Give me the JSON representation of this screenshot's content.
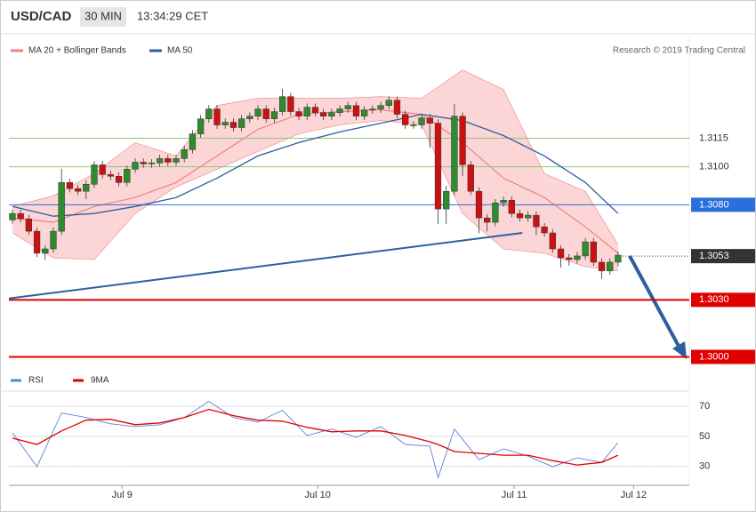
{
  "chart_data": {
    "type": "candlestick",
    "title": "USD/CAD",
    "timeframe": "30 MIN",
    "time": "13:34:29 CET",
    "credit": "Research © 2019 Trading Central",
    "xlim": [
      -0.43,
      82.7
    ],
    "ylim": [
      1.2982,
      1.3169
    ],
    "xticks": [
      {
        "value": 13.4,
        "label": "Jul 9"
      },
      {
        "value": 37.3,
        "label": "Jul 10"
      },
      {
        "value": 61.3,
        "label": "Jul 11"
      },
      {
        "value": 75.9,
        "label": "Jul 12"
      }
    ],
    "candles": {
      "up_color": "#2e8b2e",
      "down_color": "#cc1111",
      "ohlc": [
        [
          1.3072,
          1.30774,
          1.307,
          1.30754
        ],
        [
          1.30754,
          1.30774,
          1.30706,
          1.30726
        ],
        [
          1.30726,
          1.30746,
          1.30641,
          1.30661
        ],
        [
          1.30661,
          1.30681,
          1.30525,
          1.30545
        ],
        [
          1.30545,
          1.30588,
          1.3051,
          1.30568
        ],
        [
          1.30568,
          1.30681,
          1.30548,
          1.30661
        ],
        [
          1.30661,
          1.3099,
          1.30641,
          1.30917
        ],
        [
          1.30917,
          1.30937,
          1.30865,
          1.30885
        ],
        [
          1.30885,
          1.30905,
          1.30851,
          1.30871
        ],
        [
          1.30871,
          1.30928,
          1.3083,
          1.30908
        ],
        [
          1.30908,
          1.3103,
          1.30888,
          1.3101
        ],
        [
          1.3101,
          1.3103,
          1.30939,
          1.30959
        ],
        [
          1.30959,
          1.30979,
          1.3093,
          1.3095
        ],
        [
          1.3095,
          1.3097,
          1.30897,
          1.30917
        ],
        [
          1.30917,
          1.31007,
          1.30897,
          1.30987
        ],
        [
          1.30987,
          1.31044,
          1.30967,
          1.31024
        ],
        [
          1.31024,
          1.31044,
          1.30995,
          1.31015
        ],
        [
          1.31015,
          1.3104,
          1.30995,
          1.3102
        ],
        [
          1.3102,
          1.31063,
          1.31,
          1.31043
        ],
        [
          1.31043,
          1.31063,
          1.31004,
          1.31024
        ],
        [
          1.31024,
          1.31063,
          1.31004,
          1.31043
        ],
        [
          1.31043,
          1.3111,
          1.31023,
          1.3109
        ],
        [
          1.3109,
          1.31193,
          1.3107,
          1.31173
        ],
        [
          1.31173,
          1.31272,
          1.31153,
          1.31252
        ],
        [
          1.31252,
          1.31324,
          1.31232,
          1.31304
        ],
        [
          1.31304,
          1.31324,
          1.312,
          1.3122
        ],
        [
          1.3122,
          1.31254,
          1.312,
          1.31234
        ],
        [
          1.31234,
          1.31254,
          1.31186,
          1.31206
        ],
        [
          1.31206,
          1.31272,
          1.31186,
          1.31252
        ],
        [
          1.31252,
          1.31286,
          1.31232,
          1.31266
        ],
        [
          1.31266,
          1.31324,
          1.31246,
          1.31304
        ],
        [
          1.31304,
          1.31324,
          1.31232,
          1.31252
        ],
        [
          1.31252,
          1.3131,
          1.31232,
          1.3129
        ],
        [
          1.3129,
          1.3141,
          1.3127,
          1.31369
        ],
        [
          1.31369,
          1.31389,
          1.3127,
          1.3129
        ],
        [
          1.3129,
          1.3131,
          1.31246,
          1.31266
        ],
        [
          1.31266,
          1.31333,
          1.31246,
          1.31313
        ],
        [
          1.31313,
          1.31333,
          1.31265,
          1.31285
        ],
        [
          1.31285,
          1.31305,
          1.31246,
          1.31266
        ],
        [
          1.31266,
          1.31305,
          1.31246,
          1.31285
        ],
        [
          1.31285,
          1.31324,
          1.31265,
          1.31304
        ],
        [
          1.31304,
          1.31342,
          1.31284,
          1.31322
        ],
        [
          1.31322,
          1.31342,
          1.31246,
          1.31266
        ],
        [
          1.31266,
          1.31319,
          1.31246,
          1.31299
        ],
        [
          1.31299,
          1.31324,
          1.31279,
          1.31304
        ],
        [
          1.31304,
          1.31342,
          1.31284,
          1.31322
        ],
        [
          1.31322,
          1.3137,
          1.31302,
          1.3135
        ],
        [
          1.3135,
          1.3137,
          1.31256,
          1.31276
        ],
        [
          1.31276,
          1.31296,
          1.312,
          1.3122
        ],
        [
          1.3122,
          1.3124,
          1.312,
          1.3122
        ],
        [
          1.3122,
          1.31277,
          1.312,
          1.31257
        ],
        [
          1.31257,
          1.31277,
          1.311,
          1.31229
        ],
        [
          1.31229,
          1.31249,
          1.307,
          1.30778
        ],
        [
          1.30778,
          1.309,
          1.307,
          1.30871
        ],
        [
          1.30871,
          1.3133,
          1.30851,
          1.31266
        ],
        [
          1.31266,
          1.31286,
          1.3095,
          1.3101
        ],
        [
          1.3101,
          1.3103,
          1.30851,
          1.30871
        ],
        [
          1.30871,
          1.30891,
          1.3065,
          1.30731
        ],
        [
          1.30731,
          1.30751,
          1.3066,
          1.30708
        ],
        [
          1.30708,
          1.3083,
          1.30688,
          1.3081
        ],
        [
          1.3081,
          1.30844,
          1.3079,
          1.30824
        ],
        [
          1.30824,
          1.30844,
          1.30734,
          1.30754
        ],
        [
          1.30754,
          1.30774,
          1.30711,
          1.30731
        ],
        [
          1.30731,
          1.30765,
          1.30711,
          1.30745
        ],
        [
          1.30745,
          1.30765,
          1.3064,
          1.30684
        ],
        [
          1.30684,
          1.30704,
          1.30632,
          1.30652
        ],
        [
          1.30652,
          1.30672,
          1.30548,
          1.30568
        ],
        [
          1.30568,
          1.30588,
          1.3047,
          1.30521
        ],
        [
          1.30521,
          1.30541,
          1.3048,
          1.30512
        ],
        [
          1.30512,
          1.30551,
          1.30492,
          1.30531
        ],
        [
          1.30531,
          1.30625,
          1.30511,
          1.30605
        ],
        [
          1.30605,
          1.30625,
          1.30478,
          1.30498
        ],
        [
          1.30498,
          1.30518,
          1.3041,
          1.30452
        ],
        [
          1.30452,
          1.30518,
          1.30432,
          1.30498
        ],
        [
          1.30498,
          1.30555,
          1.30478,
          1.30535
        ]
      ]
    },
    "bands": {
      "name": "MA 20 + Bollinger Bands",
      "color": "#f08080",
      "fill": "#fcd6d6",
      "x": [
        0,
        5,
        10,
        15,
        20,
        25,
        30,
        35,
        40,
        45,
        50,
        55,
        60,
        65,
        70,
        74
      ],
      "middle": [
        1.30731,
        1.30708,
        1.30791,
        1.30838,
        1.30917,
        1.31057,
        1.31197,
        1.31276,
        1.3129,
        1.31299,
        1.31276,
        1.31127,
        1.3094,
        1.30838,
        1.30684,
        1.30545
      ],
      "upper": [
        1.30791,
        1.30847,
        1.30964,
        1.31127,
        1.31057,
        1.31322,
        1.3136,
        1.3136,
        1.3136,
        1.31369,
        1.3136,
        1.31509,
        1.31406,
        1.30964,
        1.30871,
        1.30591
      ],
      "lower": [
        1.30652,
        1.30521,
        1.30512,
        1.30754,
        1.30894,
        1.30987,
        1.3108,
        1.31173,
        1.3122,
        1.31243,
        1.3122,
        1.30754,
        1.30568,
        1.30545,
        1.30475,
        1.30452
      ]
    },
    "series": [
      {
        "name": "MA 50",
        "color": "#2d5f9e",
        "x": [
          0,
          5,
          10,
          15,
          20,
          25,
          30,
          35,
          40,
          45,
          50,
          55,
          60,
          65,
          70,
          74
        ],
        "values": [
          1.30791,
          1.3074,
          1.30754,
          1.30791,
          1.30838,
          1.3094,
          1.31057,
          1.31127,
          1.31183,
          1.31229,
          1.31276,
          1.31243,
          1.31164,
          1.31057,
          1.30917,
          1.30754
        ]
      }
    ],
    "trendline": {
      "color": "#2d5f9e",
      "x": [
        -0.43,
        62.3
      ],
      "values": [
        1.30307,
        1.30652
      ]
    },
    "levels": [
      {
        "value": 1.3115,
        "color": "#8dc57a",
        "style": "solid"
      },
      {
        "value": 1.31,
        "label": "1.3100",
        "color": "#8dc57a",
        "style": "solid"
      },
      {
        "value": 1.308,
        "label": "1.3080",
        "color": "#2a6fdb",
        "style": "box"
      },
      {
        "value": 1.3053,
        "color": "#333333",
        "style": "dotted"
      },
      {
        "value": 1.303,
        "label": "1.3030",
        "color": "#e00000",
        "style": "box"
      },
      {
        "value": 1.3,
        "label": "1.3000",
        "color": "#e00000",
        "style": "box"
      }
    ],
    "rsi": {
      "type": "line",
      "ylim": [
        17.5,
        80
      ],
      "yticks": [
        30,
        50,
        70
      ],
      "series": [
        {
          "name": "RSI",
          "color": "#5b7fd6",
          "x": [
            0,
            3,
            6,
            9,
            12,
            15,
            18,
            21,
            24,
            27,
            30,
            33,
            36,
            39,
            42,
            45,
            48,
            51,
            52,
            54,
            57,
            60,
            63,
            66,
            69,
            72,
            74
          ],
          "values": [
            52.4,
            29.8,
            65.5,
            62.5,
            58.3,
            56.5,
            57.7,
            62.5,
            73.2,
            62.5,
            59.5,
            67.3,
            50.6,
            54.8,
            49.4,
            56.5,
            44.6,
            43.5,
            22.6,
            54.8,
            34.5,
            41.7,
            36.9,
            29.8,
            35.7,
            32.7,
            45.8
          ]
        },
        {
          "name": "9MA",
          "color": "#e00000",
          "x": [
            0,
            3,
            6,
            9,
            12,
            15,
            18,
            21,
            24,
            27,
            30,
            33,
            36,
            39,
            42,
            45,
            48,
            51,
            52,
            54,
            57,
            60,
            63,
            66,
            69,
            72,
            74
          ],
          "values": [
            48.8,
            44.6,
            53.6,
            60.7,
            61.3,
            57.7,
            58.9,
            62.5,
            67.9,
            63.7,
            60.7,
            60.1,
            56.0,
            53.0,
            53.6,
            53.6,
            50.6,
            46.4,
            44.6,
            39.9,
            38.7,
            37.5,
            37.5,
            33.9,
            31.0,
            32.7,
            37.5
          ]
        }
      ]
    }
  }
}
